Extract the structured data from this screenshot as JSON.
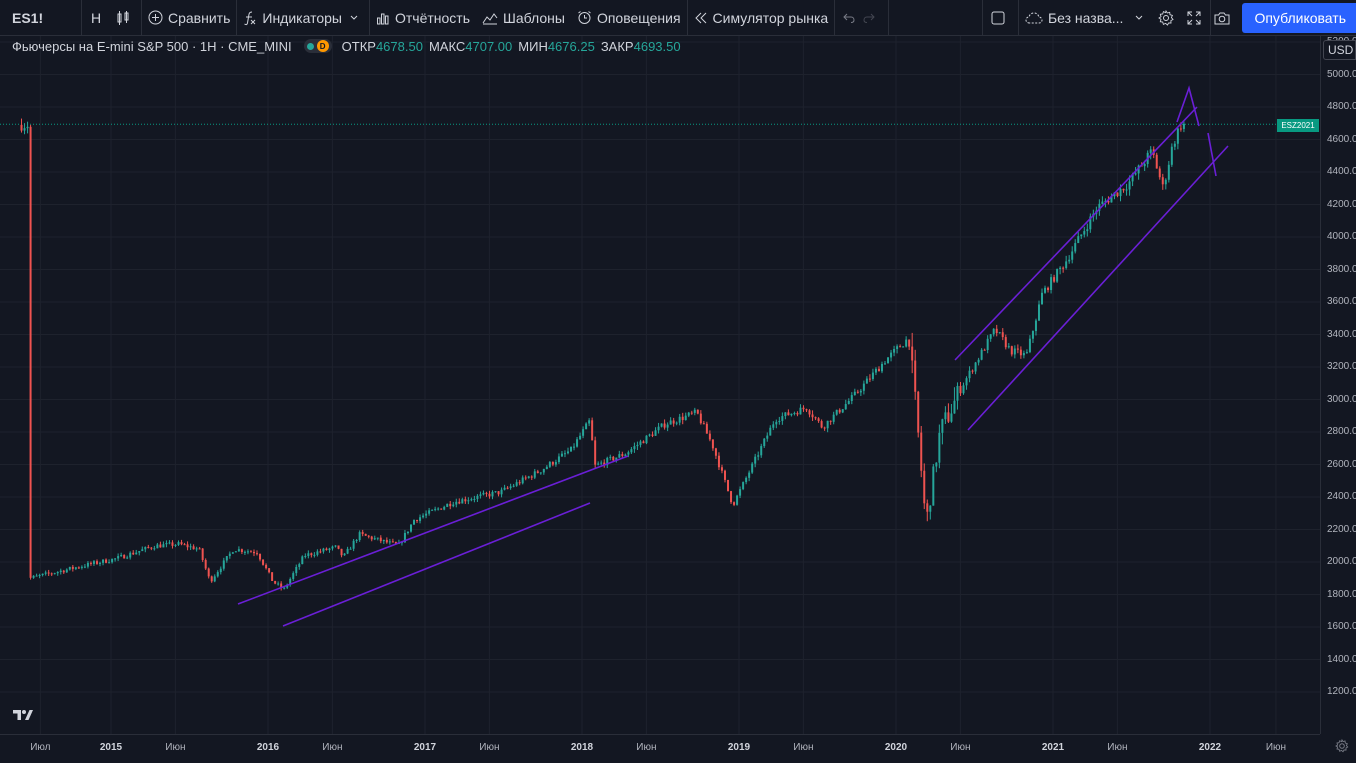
{
  "toolbar": {
    "symbol": "ES1!",
    "interval": "Н",
    "compare": "Сравнить",
    "indicators": "Индикаторы",
    "financials": "Отчётность",
    "templates": "Шаблоны",
    "alerts": "Оповещения",
    "replay": "Симулятор рынка",
    "layout_name": "Без назва...",
    "publish": "Опубликовать"
  },
  "legend": {
    "title": "Фьючерсы на E-mini S&P 500 · 1Н · CME_MINI",
    "badge": "D",
    "open_label": "ОТКР",
    "open": "4678.50",
    "high_label": "МАКС",
    "high": "4707.00",
    "low_label": "МИН",
    "low": "4676.25",
    "close_label": "ЗАКР",
    "close": "4693.50"
  },
  "price_axis": {
    "currency": "USD",
    "last_tag": "ESZ2021",
    "labels": [
      "5200.00",
      "5000.00",
      "4800.00",
      "4600.00",
      "4400.00",
      "4200.00",
      "4000.00",
      "3800.00",
      "3600.00",
      "3400.00",
      "3200.00",
      "3000.00",
      "2800.00",
      "2600.00",
      "2400.00",
      "2200.00",
      "2000.00",
      "1800.00",
      "1600.00",
      "1400.00",
      "1200.00"
    ]
  },
  "time_axis": {
    "labels": [
      {
        "text": "Июл",
        "year": false
      },
      {
        "text": "2015",
        "year": true
      },
      {
        "text": "Июн",
        "year": false
      },
      {
        "text": "2016",
        "year": true
      },
      {
        "text": "Июн",
        "year": false
      },
      {
        "text": "2017",
        "year": true
      },
      {
        "text": "Июн",
        "year": false
      },
      {
        "text": "2018",
        "year": true
      },
      {
        "text": "Июн",
        "year": false
      },
      {
        "text": "2019",
        "year": true
      },
      {
        "text": "Июн",
        "year": false
      },
      {
        "text": "2020",
        "year": true
      },
      {
        "text": "Июн",
        "year": false
      },
      {
        "text": "2021",
        "year": true
      },
      {
        "text": "Июн",
        "year": false
      },
      {
        "text": "2022",
        "year": true
      },
      {
        "text": "Июн",
        "year": false
      }
    ]
  },
  "colors": {
    "up": "#26a69a",
    "down": "#ef5350",
    "trendline": "#7b1fe0",
    "background": "#131722"
  },
  "chart_data": {
    "type": "candlestick",
    "yrange": [
      1200,
      5200
    ],
    "last_price": 4693.5,
    "series_anchor_points": [
      [
        2014.5,
        1900
      ],
      [
        2014.9,
        1990
      ],
      [
        2015.05,
        2020
      ],
      [
        2015.3,
        2100
      ],
      [
        2015.45,
        2110
      ],
      [
        2015.58,
        2080
      ],
      [
        2015.65,
        1880
      ],
      [
        2015.8,
        2080
      ],
      [
        2015.95,
        2060
      ],
      [
        2016.05,
        1880
      ],
      [
        2016.12,
        1830
      ],
      [
        2016.25,
        2040
      ],
      [
        2016.45,
        2090
      ],
      [
        2016.5,
        2030
      ],
      [
        2016.6,
        2170
      ],
      [
        2016.85,
        2100
      ],
      [
        2016.95,
        2260
      ],
      [
        2017.2,
        2370
      ],
      [
        2017.5,
        2430
      ],
      [
        2017.75,
        2560
      ],
      [
        2017.95,
        2690
      ],
      [
        2018.07,
        2870
      ],
      [
        2018.1,
        2590
      ],
      [
        2018.3,
        2670
      ],
      [
        2018.55,
        2850
      ],
      [
        2018.75,
        2920
      ],
      [
        2018.85,
        2720
      ],
      [
        2018.98,
        2350
      ],
      [
        2019.25,
        2880
      ],
      [
        2019.45,
        2950
      ],
      [
        2019.55,
        2830
      ],
      [
        2019.75,
        3020
      ],
      [
        2019.95,
        3240
      ],
      [
        2020.1,
        3380
      ],
      [
        2020.15,
        2900
      ],
      [
        2020.21,
        2230
      ],
      [
        2020.3,
        2800
      ],
      [
        2020.45,
        3100
      ],
      [
        2020.65,
        3430
      ],
      [
        2020.75,
        3300
      ],
      [
        2020.85,
        3270
      ],
      [
        2020.95,
        3650
      ],
      [
        2021.1,
        3850
      ],
      [
        2021.3,
        4180
      ],
      [
        2021.5,
        4330
      ],
      [
        2021.65,
        4530
      ],
      [
        2021.72,
        4300
      ],
      [
        2021.78,
        4560
      ],
      [
        2021.83,
        4690
      ]
    ],
    "drawings": [
      "parallel channel 2016–2018",
      "parallel channel 2020–2021",
      "arrow marks near 2021.8"
    ]
  }
}
